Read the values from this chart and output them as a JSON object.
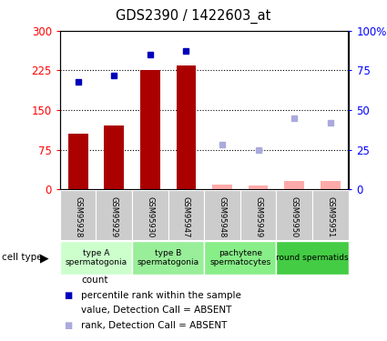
{
  "title": "GDS2390 / 1422603_at",
  "samples": [
    "GSM95928",
    "GSM95929",
    "GSM95930",
    "GSM95947",
    "GSM95948",
    "GSM95949",
    "GSM95950",
    "GSM95951"
  ],
  "count_values": [
    105,
    120,
    225,
    235,
    null,
    null,
    null,
    null
  ],
  "count_absent": [
    null,
    null,
    null,
    null,
    8,
    7,
    15,
    15
  ],
  "rank_values": [
    68,
    72,
    85,
    87,
    null,
    null,
    null,
    null
  ],
  "rank_absent": [
    null,
    null,
    null,
    null,
    28,
    25,
    45,
    42
  ],
  "ylim_left": [
    0,
    300
  ],
  "ylim_right": [
    0,
    100
  ],
  "yticks_left": [
    0,
    75,
    150,
    225,
    300
  ],
  "yticks_right": [
    0,
    25,
    50,
    75,
    100
  ],
  "ytick_labels_left": [
    "0",
    "75",
    "150",
    "225",
    "300"
  ],
  "ytick_labels_right": [
    "0",
    "25",
    "50",
    "75",
    "100%"
  ],
  "cell_groups": [
    {
      "label": "type A\nspermatogonia",
      "samples": [
        0,
        1
      ],
      "color": "#ccffcc"
    },
    {
      "label": "type B\nspermatogonia",
      "samples": [
        2,
        3
      ],
      "color": "#99ee99"
    },
    {
      "label": "pachytene\nspermatocytes",
      "samples": [
        4,
        5
      ],
      "color": "#88ee88"
    },
    {
      "label": "round spermatids",
      "samples": [
        6,
        7
      ],
      "color": "#44cc44"
    }
  ],
  "bar_color_present": "#aa0000",
  "bar_color_absent": "#ffaaaa",
  "dot_color_present": "#0000bb",
  "dot_color_absent": "#aaaadd",
  "bar_width": 0.55,
  "plot_bg": "#ffffff",
  "sample_box_color": "#cccccc",
  "fig_width": 4.25,
  "fig_height": 3.75
}
